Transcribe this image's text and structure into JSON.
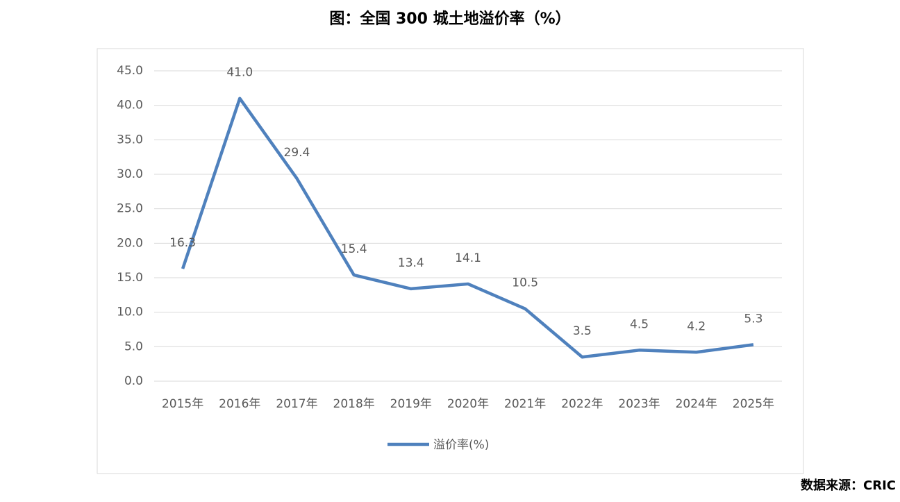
{
  "chart_data": {
    "type": "line",
    "title": "图：全国 300 城土地溢价率（%）",
    "source": "数据来源：CRIC",
    "categories": [
      "2015年",
      "2016年",
      "2017年",
      "2018年",
      "2019年",
      "2020年",
      "2021年",
      "2022年",
      "2023年",
      "2024年",
      "2025年"
    ],
    "series": [
      {
        "name": "溢价率(%)",
        "color": "#4f81bd",
        "values": [
          16.3,
          41.0,
          29.4,
          15.4,
          13.4,
          14.1,
          10.5,
          3.5,
          4.5,
          4.2,
          5.3
        ],
        "value_labels": [
          "16.3",
          "41.0",
          "29.4",
          "15.4",
          "13.4",
          "14.1",
          "10.5",
          "3.5",
          "4.5",
          "4.2",
          "5.3"
        ]
      }
    ],
    "ylim": [
      0,
      45
    ],
    "yticks": [
      {
        "value": 0,
        "label": "0.0"
      },
      {
        "value": 5,
        "label": "5.0"
      },
      {
        "value": 10,
        "label": "10.0"
      },
      {
        "value": 15,
        "label": "15.0"
      },
      {
        "value": 20,
        "label": "20.0"
      },
      {
        "value": 25,
        "label": "25.0"
      },
      {
        "value": 30,
        "label": "30.0"
      },
      {
        "value": 35,
        "label": "35.0"
      },
      {
        "value": 40,
        "label": "40.0"
      },
      {
        "value": 45,
        "label": "45.0"
      }
    ],
    "grid": true,
    "legend": "bottom"
  }
}
